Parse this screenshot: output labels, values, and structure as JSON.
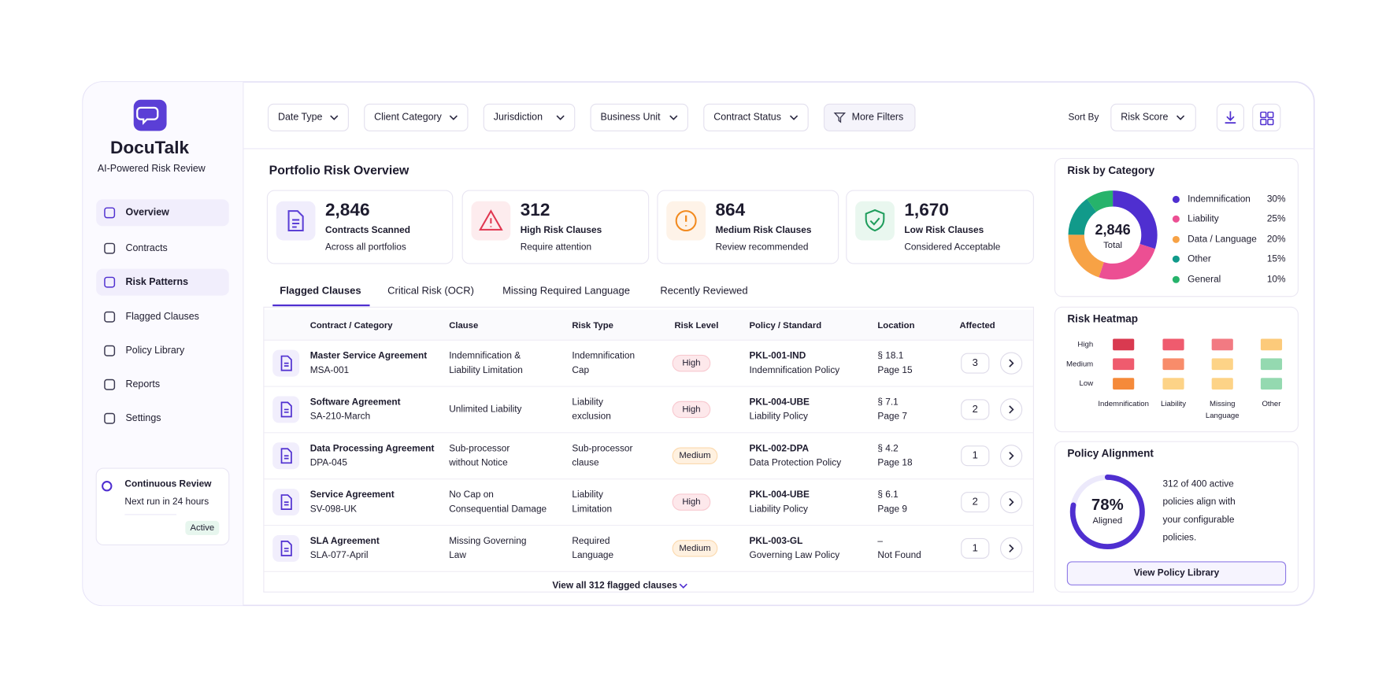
{
  "sidebar": {
    "brand": "DocuTalk",
    "tagline": "AI-Powered Risk Review",
    "nav": [
      {
        "label": "Overview",
        "active": true
      },
      {
        "label": "Contracts",
        "active": false
      },
      {
        "label": "Risk Patterns",
        "active": true
      },
      {
        "label": "Flagged Clauses",
        "active": false
      },
      {
        "label": "Policy Library",
        "active": false
      },
      {
        "label": "Reports",
        "active": false
      },
      {
        "label": "Settings",
        "active": false
      }
    ],
    "review_card": {
      "title": "Continuous Review",
      "text": "Next run in 24 hours",
      "status": "Active"
    }
  },
  "toolbar": {
    "filters": [
      "Date Type",
      "Client Category",
      "Jurisdiction",
      "Business Unit",
      "Contract Status"
    ],
    "more_filters": "More Filters",
    "sort_label": "Sort By",
    "sort_value": "Risk Score"
  },
  "overview": {
    "title": "Portfolio Risk Overview",
    "stats": [
      {
        "value": "2,846",
        "label": "Contracts Scanned",
        "note": "Across all portfolios",
        "color": "#5b3fd6",
        "bg": "#f0edfc"
      },
      {
        "value": "312",
        "label": "High Risk Clauses",
        "note": "Require attention",
        "color": "#e0364f",
        "bg": "#fdecee"
      },
      {
        "value": "864",
        "label": "Medium Risk Clauses",
        "note": "Review recommended",
        "color": "#f28a1e",
        "bg": "#fef3e8"
      },
      {
        "value": "1,670",
        "label": "Low Risk Clauses",
        "note": "Considered Acceptable",
        "color": "#1f9d5c",
        "bg": "#e9f7ef"
      }
    ]
  },
  "tabs": {
    "items": [
      "Flagged Clauses",
      "Critical Risk (OCR)",
      "Missing Required Language",
      "Recently Reviewed"
    ],
    "active": 0
  },
  "table": {
    "columns": [
      "Contract / Category",
      "Clause",
      "Risk Type",
      "Risk Level",
      "Policy / Standard",
      "Location",
      "Affected"
    ],
    "rows": [
      {
        "contract": "Master Service Agreement",
        "id": "MSA-001",
        "clause": [
          "Indemnification &",
          "Liability Limitation"
        ],
        "risk_type": [
          "Indemnification",
          "Cap"
        ],
        "level": "High",
        "policy_code": "PKL-001-IND",
        "policy_name": "Indemnification Policy",
        "location": [
          "§ 18.1",
          "Page 15"
        ],
        "affected": 3
      },
      {
        "contract": "Software Agreement",
        "id": "SA-210-March",
        "clause": [
          "Unlimited Liability"
        ],
        "risk_type": [
          "Liability",
          "exclusion"
        ],
        "level": "High",
        "policy_code": "PKL-004-UBE",
        "policy_name": "Liability Policy",
        "location": [
          "§ 7.1",
          "Page 7"
        ],
        "affected": 2
      },
      {
        "contract": "Data Processing Agreement",
        "id": "DPA-045",
        "clause": [
          "Sub-processor",
          "without Notice"
        ],
        "risk_type": [
          "Sub-processor",
          "clause"
        ],
        "level": "Medium",
        "policy_code": "PKL-002-DPA",
        "policy_name": "Data Protection Policy",
        "location": [
          "§ 4.2",
          "Page 18"
        ],
        "affected": 1
      },
      {
        "contract": "Service Agreement",
        "id": "SV-098-UK",
        "clause": [
          "No Cap on",
          "Consequential Damage"
        ],
        "risk_type": [
          "Liability",
          "Limitation"
        ],
        "level": "High",
        "policy_code": "PKL-004-UBE",
        "policy_name": "Liability Policy",
        "location": [
          "§ 6.1",
          "Page 9"
        ],
        "affected": 2
      },
      {
        "contract": "SLA Agreement",
        "id": "SLA-077-April",
        "clause": [
          "Missing Governing",
          "Law"
        ],
        "risk_type": [
          "Required",
          "Language"
        ],
        "level": "Medium",
        "policy_code": "PKL-003-GL",
        "policy_name": "Governing Law Policy",
        "location": [
          "–",
          "Not Found"
        ],
        "affected": 1
      }
    ],
    "view_all": "View all 312 flagged clauses"
  },
  "risk_by_category": {
    "title": "Risk by Category",
    "total": "2,846",
    "total_label": "Total",
    "items": [
      {
        "name": "Indemnification",
        "value": 30,
        "label": "30%",
        "color": "#4f2fd0"
      },
      {
        "name": "Liability",
        "value": 25,
        "label": "25%",
        "color": "#ec4f93"
      },
      {
        "name": "Data / Language",
        "value": 20,
        "label": "20%",
        "color": "#f7a245"
      },
      {
        "name": "Other",
        "value": 15,
        "label": "15%",
        "color": "#119a8a"
      },
      {
        "name": "General",
        "value": 10,
        "label": "10%",
        "color": "#26b36b"
      }
    ]
  },
  "heatmap": {
    "title": "Risk Heatmap",
    "rows": [
      "High",
      "Medium",
      "Low"
    ],
    "columns": [
      [
        "Indemnification"
      ],
      [
        "Liability"
      ],
      [
        "Missing",
        "Language"
      ],
      [
        "Other"
      ]
    ],
    "colors": [
      [
        "#d93a50",
        "#ef5b6e",
        "#f27a82",
        "#fcca7a"
      ],
      [
        "#ef5b6e",
        "#f88c6a",
        "#fdd387",
        "#94d9b0"
      ],
      [
        "#f58a3a",
        "#fdd387",
        "#fdd387",
        "#94d9b0"
      ]
    ]
  },
  "policy_alignment": {
    "title": "Policy Alignment",
    "value": 78,
    "label": "78%",
    "caption": "Aligned",
    "text": [
      "312 of 400 active",
      "policies align with",
      "your configurable",
      "policies."
    ],
    "button": "View Policy Library"
  }
}
